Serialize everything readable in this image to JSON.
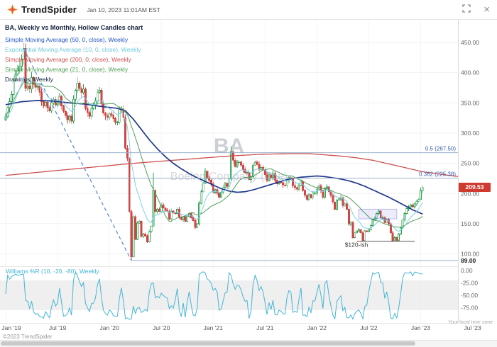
{
  "topbar": {
    "brand": "TrendSpider",
    "timestamp": "Jan 10, 2023 11:01AM EST",
    "close_glyph": "×"
  },
  "legend": {
    "title": "BA, Weekly vs Monthly, Hollow Candles chart",
    "items": [
      {
        "label": "Simple Moving Average (50, 0, close), Weekly",
        "color": "#2456c4"
      },
      {
        "label": "Exponential Moving Average (10, 0, close), Weekly",
        "color": "#6fc9de"
      },
      {
        "label": "Simple Moving Average (200, 0, close), Weekly",
        "color": "#d35050"
      },
      {
        "label": "Simple Moving Average (21, 0, close), Weekly",
        "color": "#4f9e53"
      },
      {
        "label": "Drawings, Weekly",
        "color": "#16243e"
      }
    ]
  },
  "watermark": {
    "symbol": "BA",
    "name": "Boeing Company (The)"
  },
  "price_axis": {
    "last_price_color": "#cf3b30"
  },
  "wr_pane": {
    "label": "Williams %R (10, -20, -80), Weekly"
  },
  "x_axis": {
    "labels": [
      "Jan '19",
      "Jul '19",
      "Jan '20",
      "Jul '20",
      "Jan '21",
      "Jul '21",
      "Jan '22",
      "Jul '22",
      "Jan '23",
      "Jul '23"
    ],
    "note": "Your local time zone"
  },
  "footer": {
    "copyright": "©2023 TrendSpider"
  },
  "chart_data": {
    "type": "candlestick",
    "symbol": "BA",
    "title": "BA, Weekly vs Monthly, Hollow Candles chart",
    "timeframe": "Weekly",
    "x_range": [
      "Jan 2019",
      "Jul 2023"
    ],
    "ylim": [
      85,
      465
    ],
    "price_ticks": [
      450,
      400,
      350,
      300,
      250,
      200,
      150,
      100
    ],
    "wr_ticks": [
      0,
      -25,
      -50,
      -75
    ],
    "last_price": 209.53,
    "weekly_closes": [
      327,
      342,
      352,
      364,
      387,
      398,
      404,
      410,
      422,
      440,
      374,
      378,
      373,
      392,
      381,
      376,
      378,
      368,
      352,
      345,
      351,
      342,
      337,
      350,
      356,
      347,
      350,
      361,
      345,
      336,
      329,
      322,
      328,
      320,
      356,
      371,
      383,
      374,
      367,
      373,
      341,
      334,
      328,
      341,
      346,
      353,
      367,
      371,
      349,
      333,
      329,
      326,
      332,
      330,
      324,
      318,
      318,
      340,
      340,
      326,
      275,
      258,
      170,
      95,
      162,
      124,
      151,
      154,
      129,
      133,
      130,
      120,
      137,
      146,
      205,
      170,
      174,
      170,
      181,
      176,
      172,
      170,
      158,
      171,
      168,
      167,
      174,
      161,
      157,
      162,
      154,
      162,
      167,
      160,
      155,
      144,
      150,
      184,
      203,
      217,
      237,
      225,
      222,
      216,
      202,
      206,
      201,
      194,
      202,
      210,
      217,
      212,
      224,
      269,
      255,
      245,
      252,
      252,
      247,
      240,
      234,
      235,
      223,
      228,
      247,
      252,
      248,
      240,
      243,
      239,
      231,
      222,
      231,
      226,
      233,
      222,
      216,
      219,
      218,
      214,
      213,
      222,
      226,
      225,
      213,
      210,
      207,
      214,
      220,
      205,
      197,
      190,
      198,
      193,
      201,
      201,
      207,
      213,
      205,
      194,
      209,
      211,
      203,
      197,
      186,
      174,
      189,
      191,
      193,
      180,
      183,
      174,
      149,
      152,
      127,
      135,
      138,
      140,
      135,
      122,
      138,
      137,
      140,
      147,
      157,
      159,
      167,
      171,
      160,
      160,
      152,
      157,
      150,
      135,
      121,
      127,
      122,
      133,
      143,
      156,
      167,
      175,
      178,
      181,
      178,
      183,
      187,
      190,
      205,
      209.53
    ],
    "overrides": {
      "high": {
        "9": 446,
        "74": 234,
        "113": 278
      },
      "low": {
        "63": 89
      }
    },
    "sma50_anchors": [
      [
        0,
        347
      ],
      [
        8,
        352
      ],
      [
        16,
        354
      ],
      [
        24,
        353
      ],
      [
        32,
        350
      ],
      [
        40,
        348
      ],
      [
        48,
        344
      ],
      [
        56,
        341
      ],
      [
        60,
        337
      ],
      [
        64,
        323
      ],
      [
        68,
        306
      ],
      [
        72,
        289
      ],
      [
        76,
        274
      ],
      [
        80,
        261
      ],
      [
        84,
        250
      ],
      [
        88,
        241
      ],
      [
        92,
        233
      ],
      [
        96,
        226
      ],
      [
        100,
        220
      ],
      [
        104,
        214
      ],
      [
        108,
        208
      ],
      [
        112,
        204
      ],
      [
        116,
        202
      ],
      [
        120,
        203
      ],
      [
        124,
        206
      ],
      [
        128,
        210
      ],
      [
        132,
        214
      ],
      [
        136,
        218
      ],
      [
        140,
        222
      ],
      [
        144,
        225
      ],
      [
        148,
        227
      ],
      [
        152,
        228
      ],
      [
        156,
        229
      ],
      [
        160,
        228
      ],
      [
        164,
        226
      ],
      [
        168,
        224
      ],
      [
        172,
        221
      ],
      [
        176,
        217
      ],
      [
        180,
        212
      ],
      [
        184,
        206
      ],
      [
        188,
        200
      ],
      [
        192,
        194
      ],
      [
        196,
        187
      ],
      [
        200,
        180
      ],
      [
        204,
        173
      ],
      [
        209,
        166
      ]
    ],
    "sma200_anchors": [
      [
        0,
        230
      ],
      [
        16,
        235
      ],
      [
        32,
        240
      ],
      [
        48,
        245
      ],
      [
        64,
        250
      ],
      [
        80,
        254
      ],
      [
        96,
        258
      ],
      [
        112,
        262
      ],
      [
        128,
        265
      ],
      [
        144,
        266
      ],
      [
        152,
        266
      ],
      [
        160,
        264
      ],
      [
        168,
        262
      ],
      [
        176,
        259
      ],
      [
        184,
        255
      ],
      [
        192,
        249
      ],
      [
        200,
        243
      ],
      [
        209,
        236
      ],
      [
        227,
        228
      ]
    ],
    "wr_params": {
      "period": 10,
      "upper": -20,
      "lower": -80
    },
    "drawings": {
      "trendline": {
        "from_week": 9,
        "from_price": 440,
        "to_week": 63,
        "to_price": 89,
        "style": "dashed",
        "color": "#5585d6"
      },
      "fib_levels": [
        {
          "label": "0.5 (267.50)",
          "price": 267.5
        },
        {
          "label": "0.382 (225.38)",
          "price": 225.38
        }
      ],
      "base_level": {
        "label": "89.00",
        "price": 89,
        "from_week": 63
      },
      "rect": {
        "w1": 177,
        "w2": 196,
        "p1": 174,
        "p2": 158
      },
      "note": {
        "text": "$120-ish",
        "week": 170,
        "price": 112
      },
      "note_line": {
        "w1": 176,
        "w2": 205,
        "price": 121
      }
    },
    "colors": {
      "up": "#2aa052",
      "down": "#d14545",
      "sma50": "#20398c",
      "ema10": "#7fd0e2",
      "sma200": "#cc4f4f",
      "sma21": "#4f9e58",
      "wr": "#45b5d6"
    }
  }
}
